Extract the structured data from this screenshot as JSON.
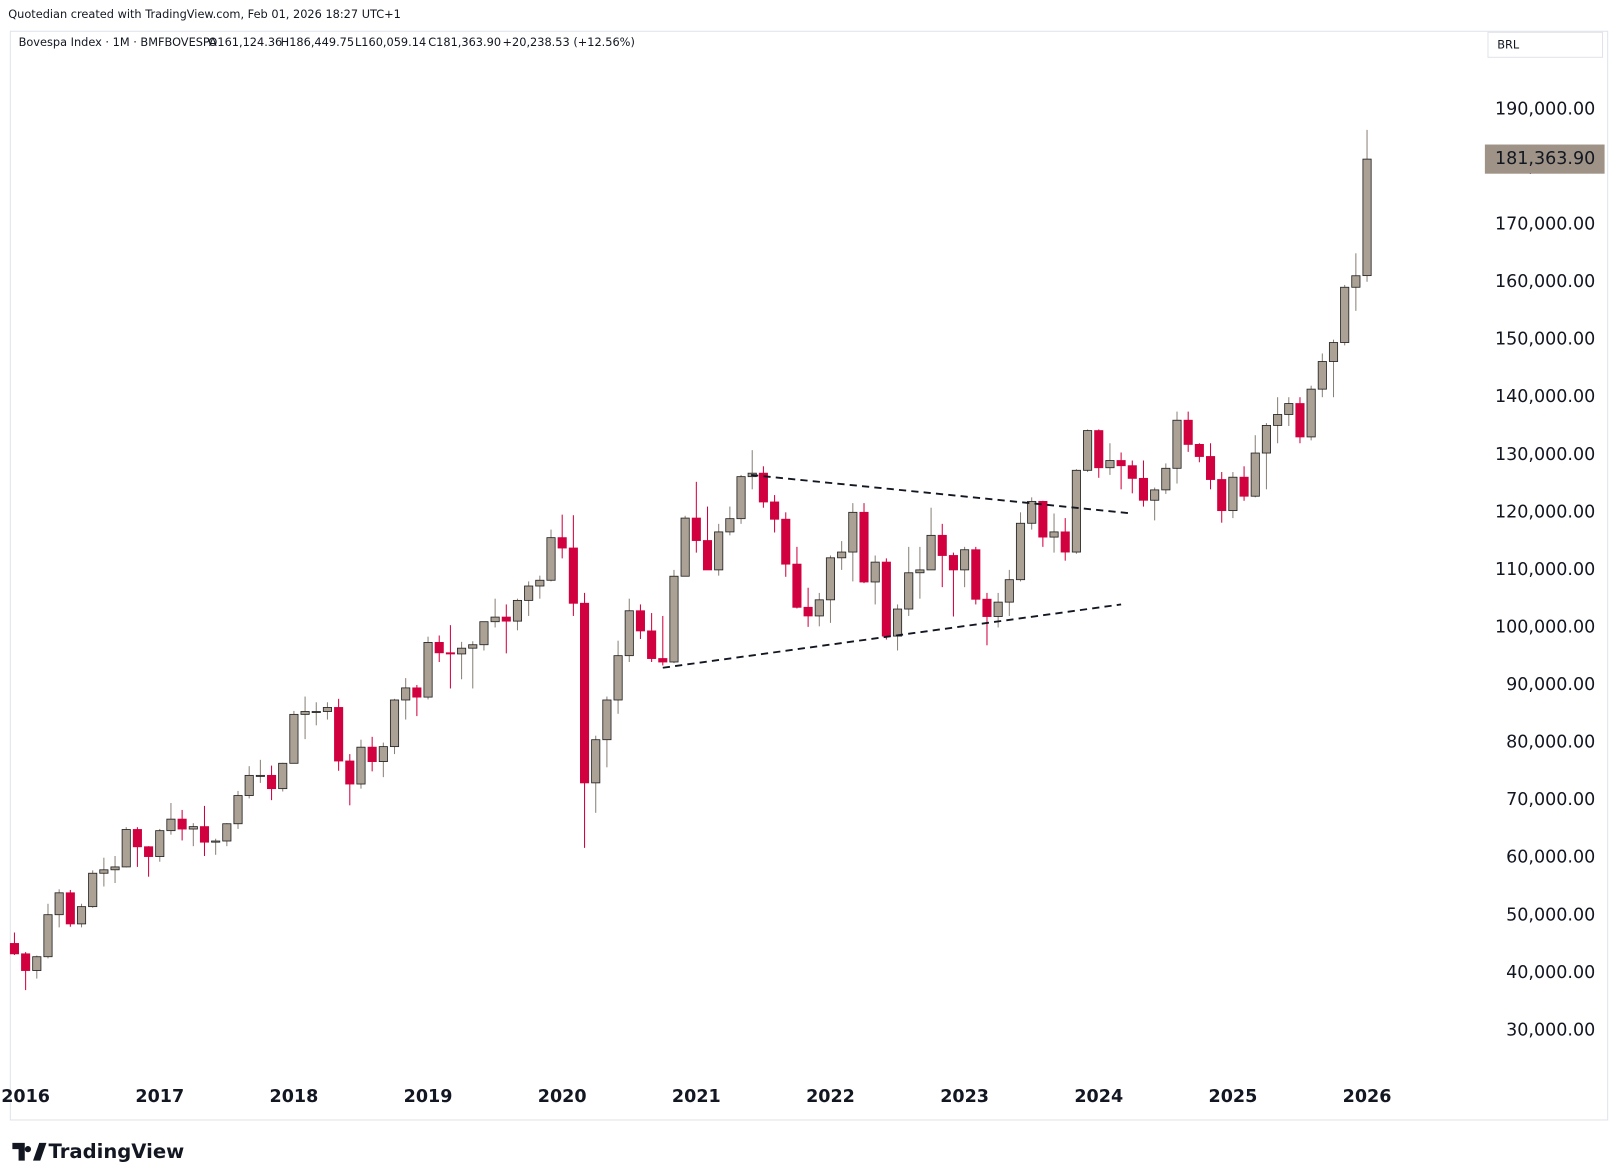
{
  "header": {
    "credit": "Quotedian created with TradingView.com, Feb 01, 2026 18:27 UTC+1",
    "brand": "TradingView"
  },
  "chart_data": {
    "type": "candlestick",
    "symbol": "Bovespa Index · 1M · BMFBOVESPA",
    "ohlc_labels": [
      "O161,124.36",
      "H186,449.75",
      "L160,059.14",
      "C181,363.90"
    ],
    "change_label": "+20,238.53 (+12.56%)",
    "currency": "BRL",
    "last_price_label": "181,363.90",
    "colors": {
      "up": "#aba194",
      "down": "#d1003f",
      "up_wick": "#8a8178",
      "down_wick": "#d1003f"
    },
    "grid": false,
    "ylim": [
      14434,
      203575
    ],
    "yticks": [
      {
        "value": 30000,
        "label": "30,000.00"
      },
      {
        "value": 40000,
        "label": "40,000.00"
      },
      {
        "value": 50000,
        "label": "50,000.00"
      },
      {
        "value": 60000,
        "label": "60,000.00"
      },
      {
        "value": 70000,
        "label": "70,000.00"
      },
      {
        "value": 80000,
        "label": "80,000.00"
      },
      {
        "value": 90000,
        "label": "90,000.00"
      },
      {
        "value": 100000,
        "label": "100,000.00"
      },
      {
        "value": 110000,
        "label": "110,000.00"
      },
      {
        "value": 120000,
        "label": "120,000.00"
      },
      {
        "value": 130000,
        "label": "130,000.00"
      },
      {
        "value": 140000,
        "label": "140,000.00"
      },
      {
        "value": 150000,
        "label": "150,000.00"
      },
      {
        "value": 160000,
        "label": "160,000.00"
      },
      {
        "value": 170000,
        "label": "170,000.00"
      },
      {
        "value": 180000,
        "label": "180,000.00"
      },
      {
        "value": 190000,
        "label": "190,000.00"
      }
    ],
    "categories": [
      null,
      "2016",
      null,
      null,
      null,
      null,
      null,
      null,
      null,
      null,
      null,
      null,
      null,
      "2017",
      null,
      null,
      null,
      null,
      null,
      null,
      null,
      null,
      null,
      null,
      null,
      "2018",
      null,
      null,
      null,
      null,
      null,
      null,
      null,
      null,
      null,
      null,
      null,
      "2019",
      null,
      null,
      null,
      null,
      null,
      null,
      null,
      null,
      null,
      null,
      null,
      "2020",
      null,
      null,
      null,
      null,
      null,
      null,
      null,
      null,
      null,
      null,
      null,
      "2021",
      null,
      null,
      null,
      null,
      null,
      null,
      null,
      null,
      null,
      null,
      null,
      "2022",
      null,
      null,
      null,
      null,
      null,
      null,
      null,
      null,
      null,
      null,
      null,
      "2023",
      null,
      null,
      null,
      null,
      null,
      null,
      null,
      null,
      null,
      null,
      null,
      "2024",
      null,
      null,
      null,
      null,
      null,
      null,
      null,
      null,
      null,
      null,
      null,
      "2025",
      null,
      null,
      null,
      null,
      null,
      null,
      null,
      null,
      null,
      null,
      null,
      "2026"
    ],
    "open": [
      45100,
      43300,
      40400,
      42800,
      50100,
      53900,
      48500,
      51500,
      57300,
      57900,
      58400,
      64900,
      61900,
      60200,
      64700,
      66700,
      64980,
      65400,
      62700,
      62900,
      65900,
      70800,
      74300,
      74300,
      72000,
      76400,
      84900,
      85400,
      85400,
      86100,
      76800,
      72800,
      79200,
      76700,
      79300,
      87400,
      89500,
      87900,
      97400,
      95600,
      95400,
      96400,
      97000,
      101000,
      101800,
      101100,
      104700,
      107200,
      108200,
      115600,
      113800,
      104200,
      73000,
      80500,
      87400,
      95100,
      102900,
      99400,
      94600,
      94000,
      108900,
      119000,
      115100,
      110000,
      116600,
      118900,
      126200,
      126800,
      121800,
      118800,
      111000,
      103500,
      102000,
      104800,
      112100,
      113100,
      120000,
      107900,
      111350,
      98500,
      103200,
      109500,
      110000,
      116000,
      112500,
      110000,
      113500,
      104900,
      101900,
      104400,
      108300,
      118100,
      121900,
      115700,
      116600,
      113100,
      127300,
      134200,
      127750,
      129000,
      128100,
      125900,
      122100,
      123900,
      127650,
      136000,
      131800,
      129700,
      125700,
      120300,
      126100,
      122800,
      130300,
      135100,
      137000,
      138900,
      133100,
      141400,
      146200,
      149500,
      159100,
      161124.36
    ],
    "high": [
      47000,
      43600,
      43000,
      52000,
      54500,
      54400,
      52000,
      57800,
      60000,
      60300,
      65300,
      65300,
      62000,
      65000,
      69500,
      68300,
      66000,
      69000,
      63300,
      66000,
      71600,
      75900,
      77000,
      76000,
      76500,
      85500,
      88000,
      87000,
      87000,
      87600,
      78000,
      80500,
      81000,
      80000,
      87600,
      91200,
      90000,
      98400,
      98600,
      100400,
      97500,
      97600,
      101000,
      105000,
      104000,
      105000,
      108000,
      109000,
      117000,
      119600,
      119500,
      106000,
      81200,
      88000,
      97700,
      105000,
      104000,
      102500,
      102000,
      110000,
      119400,
      125300,
      121000,
      118000,
      121000,
      126500,
      130800,
      128000,
      123000,
      120000,
      114000,
      106900,
      106000,
      112500,
      115000,
      121600,
      121600,
      112500,
      112000,
      104000,
      114000,
      114000,
      120800,
      118000,
      113000,
      114000,
      114000,
      106000,
      106000,
      110000,
      120000,
      122600,
      122000,
      119800,
      119000,
      127500,
      134400,
      134400,
      132000,
      130400,
      129000,
      129000,
      124300,
      128500,
      137500,
      137500,
      132000,
      132000,
      127000,
      127000,
      128000,
      133400,
      135500,
      140000,
      140000,
      140000,
      142000,
      147600,
      150000,
      159500,
      165000,
      186449.75
    ],
    "low": [
      43100,
      37000,
      39000,
      42500,
      47900,
      48000,
      47900,
      51300,
      55000,
      55600,
      58300,
      58400,
      56700,
      59300,
      64000,
      63000,
      62000,
      60300,
      60500,
      62000,
      65000,
      70300,
      73000,
      70000,
      71500,
      76400,
      80600,
      83000,
      84000,
      75100,
      69100,
      72000,
      75000,
      74000,
      78000,
      84000,
      84600,
      87500,
      94000,
      89400,
      91000,
      89400,
      96000,
      100000,
      95500,
      99500,
      102000,
      105000,
      108000,
      112000,
      102000,
      61700,
      67800,
      75700,
      85000,
      94000,
      98000,
      94000,
      93400,
      93800,
      108900,
      113000,
      110000,
      109000,
      116000,
      118000,
      124000,
      120800,
      116500,
      108800,
      103300,
      100100,
      100200,
      100800,
      110000,
      108000,
      107700,
      104000,
      97900,
      96000,
      102000,
      105000,
      110000,
      107000,
      101900,
      107000,
      104000,
      96900,
      100000,
      102000,
      108000,
      117000,
      114000,
      113000,
      111600,
      112800,
      127000,
      126000,
      126500,
      124000,
      123300,
      121000,
      118600,
      123200,
      125000,
      130500,
      128700,
      124000,
      118200,
      119000,
      122000,
      122600,
      124000,
      132000,
      135000,
      132000,
      132500,
      140000,
      140000,
      149000,
      155000,
      160059.14
    ],
    "close": [
      43300,
      40400,
      42800,
      50100,
      53900,
      48500,
      51500,
      57300,
      57900,
      58400,
      64900,
      61900,
      60200,
      64700,
      66700,
      64980,
      65400,
      62700,
      62900,
      65900,
      70800,
      74300,
      74300,
      72000,
      76400,
      84900,
      85400,
      85400,
      86100,
      76800,
      72800,
      79200,
      76700,
      79300,
      87400,
      89500,
      87900,
      97400,
      95600,
      95400,
      96400,
      97000,
      101000,
      101800,
      101100,
      104700,
      107200,
      108200,
      115600,
      113800,
      104200,
      73000,
      80500,
      87400,
      95100,
      102900,
      99400,
      94600,
      94000,
      108900,
      119000,
      115100,
      110000,
      116600,
      118900,
      126200,
      126800,
      121800,
      118800,
      111000,
      103500,
      102000,
      104800,
      112100,
      113100,
      120000,
      107900,
      111350,
      98500,
      103200,
      109500,
      110000,
      116000,
      112500,
      110000,
      113500,
      104900,
      101900,
      104400,
      108300,
      118100,
      121900,
      115700,
      116600,
      113100,
      127300,
      134200,
      127750,
      129000,
      128100,
      125900,
      122100,
      123900,
      127650,
      136000,
      131800,
      129700,
      125700,
      120300,
      126100,
      122800,
      130300,
      135100,
      137000,
      138900,
      133100,
      141400,
      146200,
      149500,
      159100,
      161100,
      181363.9
    ],
    "trendlines": [
      {
        "x": [
          65.9,
          100
        ],
        "y": [
          126500,
          119800
        ]
      },
      {
        "x": [
          58,
          99
        ],
        "y": [
          93000,
          104000
        ]
      }
    ]
  }
}
